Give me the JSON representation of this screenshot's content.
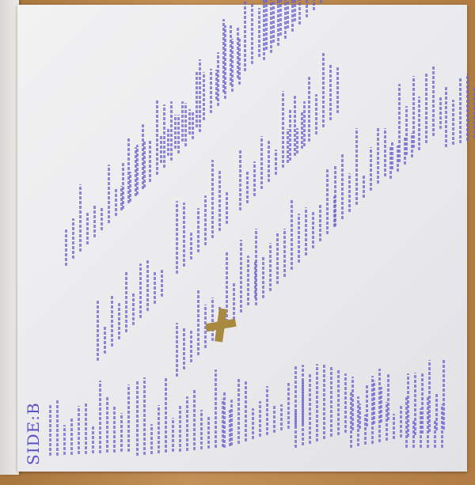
{
  "insert": {
    "side_label": "SIDE:B",
    "ink_color": "#5a52c8",
    "cross_color": "#a8893f",
    "paper_color": "#eeeef0"
  }
}
